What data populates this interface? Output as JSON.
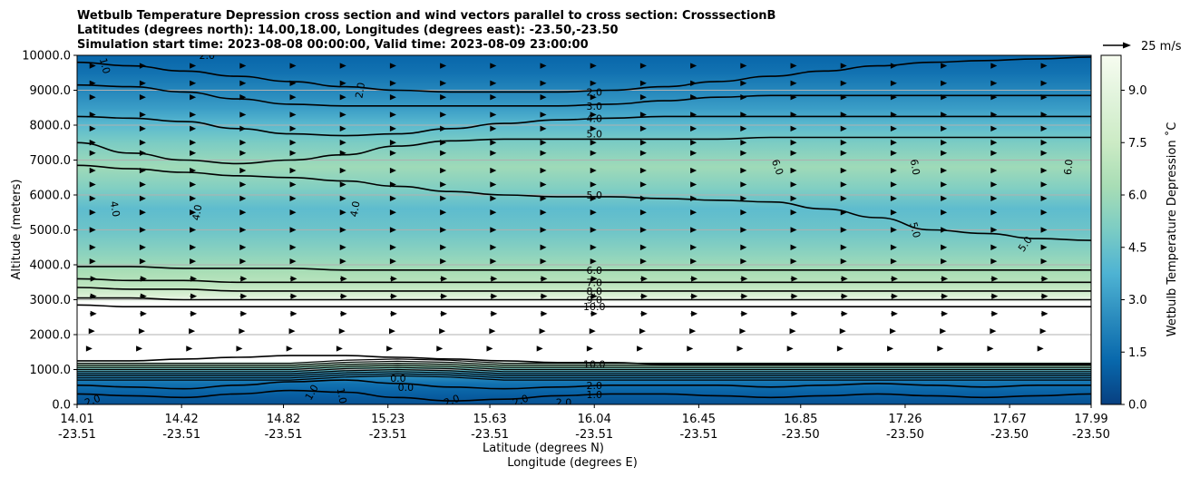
{
  "chart_data": {
    "type": "heatmap",
    "subtype": "filled-contour cross section with wind vectors",
    "title_lines": [
      "Wetbulb Temperature Depression cross section and wind vectors parallel to cross section: CrosssectionB",
      "Latitudes (degrees north): 14.00,18.00, Longitudes (degrees east): -23.50,-23.50",
      "Simulation start time: 2023-08-08 00:00:00, Valid time: 2023-08-09 23:00:00"
    ],
    "ylabel": "Altitude (meters)",
    "xlabel_lat": "Latitude (degrees N)",
    "xlabel_lon": "Longitude (degrees E)",
    "ylim": [
      0,
      10000
    ],
    "yticks": [
      "0.0",
      "1000.0",
      "2000.0",
      "3000.0",
      "4000.0",
      "5000.0",
      "6000.0",
      "7000.0",
      "8000.0",
      "9000.0",
      "10000.0"
    ],
    "ytick_values": [
      0,
      1000,
      2000,
      3000,
      4000,
      5000,
      6000,
      7000,
      8000,
      9000,
      10000
    ],
    "xticks_lat": [
      "14.01",
      "14.42",
      "14.82",
      "15.23",
      "15.63",
      "16.04",
      "16.45",
      "16.85",
      "17.26",
      "17.67",
      "17.99"
    ],
    "xticks_lon": [
      "-23.51",
      "-23.51",
      "-23.51",
      "-23.51",
      "-23.51",
      "-23.51",
      "-23.51",
      "-23.50",
      "-23.50",
      "-23.50",
      "-23.50"
    ],
    "xtick_values": [
      14.01,
      14.42,
      14.82,
      15.23,
      15.63,
      16.04,
      16.45,
      16.85,
      17.26,
      17.67,
      17.99
    ],
    "xlim": [
      14.01,
      17.99
    ],
    "colorbar": {
      "label": "Wetbulb Temperature Depression $^\\circ$C",
      "label_text": "Wetbulb Temperature Depression ˚C",
      "range": [
        0,
        10
      ],
      "ticks": [
        "0.0",
        "1.5",
        "3.0",
        "4.5",
        "6.0",
        "7.5",
        "9.0"
      ],
      "tick_values": [
        0,
        1.5,
        3,
        4.5,
        6,
        7.5,
        9
      ],
      "colormap": "GnBu_r",
      "colors": [
        "#084081",
        "#0868ac",
        "#2b8cbe",
        "#4eb3d3",
        "#7bccc4",
        "#a8ddb5",
        "#ccebc5",
        "#e0f3db",
        "#f7fcf0"
      ]
    },
    "quiver_key": {
      "label": "25 m/s",
      "value": 25
    },
    "vertical_profile": [
      {
        "z": 0,
        "v": 0.5
      },
      {
        "z": 300,
        "v": 1.0
      },
      {
        "z": 600,
        "v": 1.6
      },
      {
        "z": 900,
        "v": 3.0
      },
      {
        "z": 1100,
        "v": 6.0
      },
      {
        "z": 1250,
        "v": 10.0
      },
      {
        "z": 2900,
        "v": 10.0
      },
      {
        "z": 3100,
        "v": 8.5
      },
      {
        "z": 3400,
        "v": 7.0
      },
      {
        "z": 3800,
        "v": 6.3
      },
      {
        "z": 4300,
        "v": 5.5
      },
      {
        "z": 5000,
        "v": 4.6
      },
      {
        "z": 5600,
        "v": 4.2
      },
      {
        "z": 6200,
        "v": 5.2
      },
      {
        "z": 6800,
        "v": 6.0
      },
      {
        "z": 7500,
        "v": 5.0
      },
      {
        "z": 8000,
        "v": 4.1
      },
      {
        "z": 8500,
        "v": 3.0
      },
      {
        "z": 9000,
        "v": 2.3
      },
      {
        "z": 9500,
        "v": 1.6
      },
      {
        "z": 10000,
        "v": 1.2
      }
    ],
    "contour_levels_labeled": [
      {
        "text": "2.0",
        "z": 8950
      },
      {
        "text": "3.0",
        "z": 8550
      },
      {
        "text": "4.0",
        "z": 8200
      },
      {
        "text": "5.0",
        "z": 7750
      },
      {
        "text": "5.0",
        "z": 6000
      },
      {
        "text": "6.0",
        "z": 3850
      },
      {
        "text": "7.0",
        "z": 3500
      },
      {
        "text": "8.0",
        "z": 3250
      },
      {
        "text": "9.0",
        "z": 3000
      },
      {
        "text": "10.0",
        "z": 2800
      },
      {
        "text": "10.0",
        "z": 1150
      },
      {
        "text": "2.0",
        "z": 550
      },
      {
        "text": "1.0",
        "z": 280
      }
    ],
    "contour_lines": [
      {
        "level": "2.0",
        "z": [
          9800,
          9700,
          9550,
          9400,
          9250,
          9100,
          9000,
          8950,
          8950,
          8950,
          9000,
          9100,
          9250,
          9400,
          9550,
          9700,
          9800,
          9850,
          9900,
          9950
        ]
      },
      {
        "level": "3.0",
        "z": [
          9150,
          9100,
          8950,
          8750,
          8600,
          8550,
          8550,
          8550,
          8550,
          8550,
          8600,
          8700,
          8800,
          8850,
          8850,
          8850,
          8850,
          8850,
          8850,
          8850
        ]
      },
      {
        "level": "4.0",
        "z": [
          8250,
          8200,
          8100,
          7900,
          7750,
          7700,
          7750,
          7900,
          8050,
          8150,
          8200,
          8250,
          8250,
          8250,
          8250,
          8250,
          8250,
          8250,
          8250,
          8250
        ]
      },
      {
        "level": "5.0",
        "z": [
          7500,
          7200,
          7000,
          6900,
          7000,
          7150,
          7400,
          7550,
          7600,
          7600,
          7600,
          7600,
          7600,
          7650,
          7650,
          7650,
          7650,
          7650,
          7650,
          7650
        ]
      },
      {
        "level": "5.0",
        "z": [
          6850,
          6750,
          6650,
          6550,
          6500,
          6400,
          6250,
          6100,
          6000,
          5950,
          5950,
          5900,
          5850,
          5800,
          5600,
          5350,
          5000,
          4900,
          4750,
          4700
        ]
      },
      {
        "level": "6.0",
        "z": [
          3950,
          3950,
          3900,
          3900,
          3900,
          3850,
          3850,
          3850,
          3850,
          3850,
          3850,
          3850,
          3850,
          3850,
          3850,
          3850,
          3850,
          3850,
          3850,
          3850
        ]
      },
      {
        "level": "7.0",
        "z": [
          3600,
          3550,
          3550,
          3500,
          3500,
          3500,
          3500,
          3500,
          3500,
          3500,
          3500,
          3500,
          3500,
          3500,
          3500,
          3500,
          3500,
          3500,
          3500,
          3500
        ]
      },
      {
        "level": "8.0",
        "z": [
          3350,
          3300,
          3300,
          3250,
          3250,
          3250,
          3250,
          3250,
          3250,
          3250,
          3250,
          3250,
          3250,
          3250,
          3250,
          3250,
          3250,
          3250,
          3250,
          3250
        ]
      },
      {
        "level": "9.0",
        "z": [
          3050,
          3050,
          3000,
          3000,
          3000,
          3000,
          3000,
          3000,
          3000,
          3000,
          3000,
          3000,
          3000,
          3000,
          3000,
          3000,
          3000,
          3000,
          3000,
          3000
        ]
      },
      {
        "level": "10.0",
        "z": [
          2850,
          2800,
          2800,
          2800,
          2800,
          2800,
          2800,
          2800,
          2800,
          2800,
          2800,
          2800,
          2800,
          2800,
          2800,
          2800,
          2800,
          2800,
          2800,
          2800
        ]
      },
      {
        "level": "10.0",
        "z": [
          1250,
          1250,
          1300,
          1350,
          1400,
          1400,
          1350,
          1300,
          1250,
          1200,
          1200,
          1150,
          1150,
          1150,
          1150,
          1150,
          1150,
          1150,
          1150,
          1150
        ]
      },
      {
        "level": "2.0",
        "z": [
          550,
          500,
          450,
          550,
          650,
          700,
          600,
          500,
          450,
          500,
          550,
          550,
          550,
          500,
          550,
          600,
          550,
          500,
          550,
          550
        ]
      },
      {
        "level": "1.0",
        "z": [
          300,
          250,
          200,
          300,
          400,
          350,
          200,
          100,
          150,
          250,
          300,
          300,
          250,
          200,
          250,
          300,
          250,
          200,
          250,
          300
        ]
      }
    ],
    "inline_labels": [
      {
        "text": "1.0",
        "lat": 14.12,
        "z": 9700,
        "rot": 75
      },
      {
        "text": "2.0",
        "lat": 15.12,
        "z": 9000,
        "rot": -80
      },
      {
        "text": "2.0",
        "lat": 14.52,
        "z": 10000,
        "rot": 0
      },
      {
        "text": "4.0",
        "lat": 14.16,
        "z": 5600,
        "rot": 80
      },
      {
        "text": "4.0",
        "lat": 14.48,
        "z": 5500,
        "rot": -80
      },
      {
        "text": "4.0",
        "lat": 15.1,
        "z": 5600,
        "rot": -80
      },
      {
        "text": "6.0",
        "lat": 16.76,
        "z": 6800,
        "rot": 70
      },
      {
        "text": "6.0",
        "lat": 17.3,
        "z": 6800,
        "rot": 80
      },
      {
        "text": "6.0",
        "lat": 17.9,
        "z": 6800,
        "rot": -85
      },
      {
        "text": "5.0",
        "lat": 17.3,
        "z": 5000,
        "rot": 75
      },
      {
        "text": "5.0",
        "lat": 17.73,
        "z": 4600,
        "rot": -55
      },
      {
        "text": "0.0",
        "lat": 15.27,
        "z": 750,
        "rot": 0
      },
      {
        "text": "0.0",
        "lat": 15.3,
        "z": 500,
        "rot": 0
      },
      {
        "text": "1.0",
        "lat": 14.93,
        "z": 350,
        "rot": -60
      },
      {
        "text": "1.0",
        "lat": 15.05,
        "z": 250,
        "rot": 80
      },
      {
        "text": "2.0",
        "lat": 14.07,
        "z": 120,
        "rot": -20
      },
      {
        "text": "2.0",
        "lat": 15.48,
        "z": 120,
        "rot": -20
      },
      {
        "text": "2.0",
        "lat": 15.75,
        "z": 120,
        "rot": -20
      },
      {
        "text": "2.0",
        "lat": 15.92,
        "z": 60,
        "rot": 0
      }
    ],
    "wind_vector_levels_m": [
      9700,
      9200,
      8800,
      8300,
      7900,
      7500,
      7200,
      6700,
      6300,
      5900,
      5500,
      5000,
      4500,
      4100,
      3600,
      3100,
      2600,
      2100,
      1600
    ],
    "wind_vector_columns": 20,
    "wind_speeds_ms": [
      7,
      7,
      7,
      7,
      7,
      7,
      7,
      7,
      7,
      7,
      7,
      7,
      7,
      7,
      8,
      8,
      8,
      6,
      3
    ]
  }
}
